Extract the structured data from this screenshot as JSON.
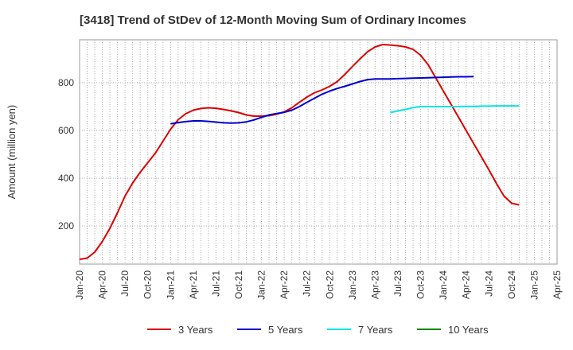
{
  "chart_data": {
    "type": "line",
    "title": "[3418]  Trend of StDev of 12-Month Moving Sum of Ordinary Incomes",
    "ylabel": "Amount (million yen)",
    "xlabel": "",
    "ylim": [
      40,
      980
    ],
    "yticks": [
      200,
      400,
      600,
      800
    ],
    "x_ticks": [
      "Jan-20",
      "Apr-20",
      "Jul-20",
      "Oct-20",
      "Jan-21",
      "Apr-21",
      "Jul-21",
      "Oct-21",
      "Jan-22",
      "Apr-22",
      "Jul-22",
      "Oct-22",
      "Jan-23",
      "Apr-23",
      "Jul-23",
      "Oct-23",
      "Jan-24",
      "Apr-24",
      "Jul-24",
      "Oct-24",
      "Jan-25",
      "Apr-25"
    ],
    "grid": true,
    "legend_position": "bottom",
    "series": [
      {
        "name": "3 Years",
        "color": "#dd0000",
        "points": [
          [
            "Jan-20",
            60
          ],
          [
            "Feb-20",
            65
          ],
          [
            "Mar-20",
            90
          ],
          [
            "Apr-20",
            135
          ],
          [
            "May-20",
            190
          ],
          [
            "Jun-20",
            255
          ],
          [
            "Jul-20",
            325
          ],
          [
            "Aug-20",
            380
          ],
          [
            "Sep-20",
            425
          ],
          [
            "Oct-20",
            465
          ],
          [
            "Nov-20",
            505
          ],
          [
            "Dec-20",
            555
          ],
          [
            "Jan-21",
            605
          ],
          [
            "Feb-21",
            645
          ],
          [
            "Mar-21",
            670
          ],
          [
            "Apr-21",
            685
          ],
          [
            "May-21",
            692
          ],
          [
            "Jun-21",
            695
          ],
          [
            "Jul-21",
            693
          ],
          [
            "Aug-21",
            688
          ],
          [
            "Sep-21",
            682
          ],
          [
            "Oct-21",
            675
          ],
          [
            "Nov-21",
            665
          ],
          [
            "Dec-21",
            660
          ],
          [
            "Jan-22",
            660
          ],
          [
            "Feb-22",
            662
          ],
          [
            "Mar-22",
            668
          ],
          [
            "Apr-22",
            678
          ],
          [
            "May-22",
            695
          ],
          [
            "Jun-22",
            718
          ],
          [
            "Jul-22",
            740
          ],
          [
            "Aug-22",
            758
          ],
          [
            "Sep-22",
            770
          ],
          [
            "Oct-22",
            785
          ],
          [
            "Nov-22",
            805
          ],
          [
            "Dec-22",
            835
          ],
          [
            "Jan-23",
            868
          ],
          [
            "Feb-23",
            900
          ],
          [
            "Mar-23",
            930
          ],
          [
            "Apr-23",
            950
          ],
          [
            "May-23",
            960
          ],
          [
            "Jun-23",
            958
          ],
          [
            "Jul-23",
            955
          ],
          [
            "Aug-23",
            950
          ],
          [
            "Sep-23",
            940
          ],
          [
            "Oct-23",
            915
          ],
          [
            "Nov-23",
            875
          ],
          [
            "Dec-23",
            820
          ],
          [
            "Jan-24",
            765
          ],
          [
            "Feb-24",
            710
          ],
          [
            "Mar-24",
            655
          ],
          [
            "Apr-24",
            600
          ],
          [
            "May-24",
            545
          ],
          [
            "Jun-24",
            490
          ],
          [
            "Jul-24",
            435
          ],
          [
            "Aug-24",
            378
          ],
          [
            "Sep-24",
            325
          ],
          [
            "Oct-24",
            295
          ],
          [
            "Nov-24",
            288
          ]
        ]
      },
      {
        "name": "5 Years",
        "color": "#0000cc",
        "points": [
          [
            "Jan-21",
            628
          ],
          [
            "Feb-21",
            633
          ],
          [
            "Mar-21",
            637
          ],
          [
            "Apr-21",
            640
          ],
          [
            "May-21",
            640
          ],
          [
            "Jun-21",
            638
          ],
          [
            "Jul-21",
            635
          ],
          [
            "Aug-21",
            632
          ],
          [
            "Sep-21",
            631
          ],
          [
            "Oct-21",
            632
          ],
          [
            "Nov-21",
            636
          ],
          [
            "Dec-21",
            644
          ],
          [
            "Jan-22",
            655
          ],
          [
            "Feb-22",
            665
          ],
          [
            "Mar-22",
            671
          ],
          [
            "Apr-22",
            676
          ],
          [
            "May-22",
            685
          ],
          [
            "Jun-22",
            700
          ],
          [
            "Jul-22",
            718
          ],
          [
            "Aug-22",
            735
          ],
          [
            "Sep-22",
            752
          ],
          [
            "Oct-22",
            765
          ],
          [
            "Nov-22",
            776
          ],
          [
            "Dec-22",
            785
          ],
          [
            "Jan-23",
            795
          ],
          [
            "Feb-23",
            805
          ],
          [
            "Mar-23",
            813
          ],
          [
            "Apr-23",
            816
          ],
          [
            "May-23",
            816
          ],
          [
            "Jun-23",
            816
          ],
          [
            "Jul-23",
            817
          ],
          [
            "Aug-23",
            818
          ],
          [
            "Sep-23",
            819
          ],
          [
            "Oct-23",
            820
          ],
          [
            "Nov-23",
            821
          ],
          [
            "Dec-23",
            822
          ],
          [
            "Jan-24",
            823
          ],
          [
            "Feb-24",
            824
          ],
          [
            "Mar-24",
            825
          ],
          [
            "Apr-24",
            825
          ],
          [
            "May-24",
            826
          ]
        ]
      },
      {
        "name": "7 Years",
        "color": "#00e5e5",
        "points": [
          [
            "Jun-23",
            675
          ],
          [
            "Jul-23",
            682
          ],
          [
            "Aug-23",
            688
          ],
          [
            "Sep-23",
            696
          ],
          [
            "Oct-23",
            700
          ],
          [
            "Nov-23",
            700
          ],
          [
            "Dec-23",
            700
          ],
          [
            "Jan-24",
            700
          ],
          [
            "Feb-24",
            700
          ],
          [
            "Mar-24",
            700
          ],
          [
            "Apr-24",
            701
          ],
          [
            "May-24",
            701
          ],
          [
            "Jun-24",
            702
          ],
          [
            "Jul-24",
            702
          ],
          [
            "Aug-24",
            703
          ],
          [
            "Sep-24",
            703
          ],
          [
            "Oct-24",
            703
          ],
          [
            "Nov-24",
            703
          ]
        ]
      },
      {
        "name": "10 Years",
        "color": "#008800",
        "points": []
      }
    ]
  }
}
